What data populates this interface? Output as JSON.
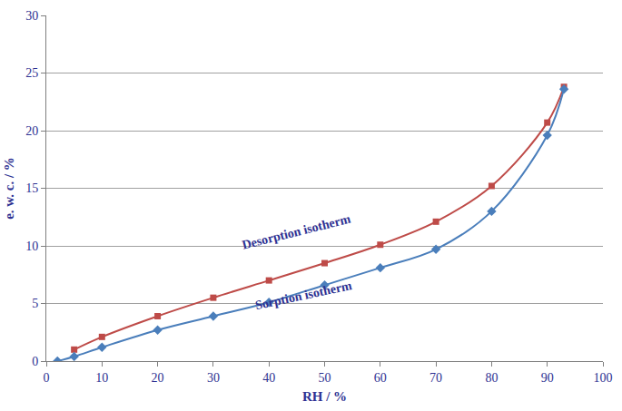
{
  "chart_data": {
    "type": "line",
    "x_label": "RH / %",
    "y_label": "e. w. c. / %",
    "xlim": [
      0,
      100
    ],
    "xticks": [
      0,
      10,
      20,
      30,
      40,
      50,
      60,
      70,
      80,
      90,
      100
    ],
    "ylim": [
      0,
      30
    ],
    "yticks": [
      0,
      5,
      10,
      15,
      20,
      25,
      30
    ],
    "grid": "y",
    "series": [
      {
        "name": "Desorption isotherm",
        "color": "#be4b48",
        "marker": "square",
        "line_style": "smooth",
        "x": [
          5,
          10,
          20,
          30,
          40,
          50,
          60,
          70,
          80,
          90,
          93
        ],
        "values": [
          1.0,
          2.1,
          3.9,
          5.5,
          7.0,
          8.5,
          10.1,
          12.1,
          15.2,
          20.7,
          23.8
        ]
      },
      {
        "name": "Sorption isotherm",
        "color": "#4a7ebb",
        "marker": "diamond",
        "line_style": "smooth",
        "x": [
          2,
          5,
          10,
          20,
          30,
          40,
          50,
          60,
          70,
          80,
          90,
          93
        ],
        "values": [
          0,
          0.4,
          1.2,
          2.7,
          3.9,
          5.1,
          6.6,
          8.1,
          9.7,
          13.0,
          19.6,
          23.6
        ]
      }
    ]
  }
}
